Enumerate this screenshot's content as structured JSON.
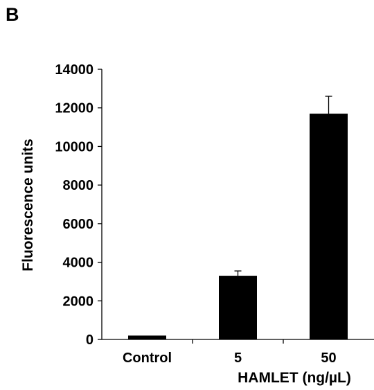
{
  "panel_label": "B",
  "chart_data": {
    "type": "bar",
    "categories": [
      "Control",
      "5",
      "50"
    ],
    "values": [
      200,
      3300,
      11700
    ],
    "error": [
      0,
      250,
      900
    ],
    "xlabel": "HAMLET (ng/µL)",
    "ylabel": "Fluorescence units",
    "ylim": [
      0,
      14000
    ],
    "yticks": [
      0,
      2000,
      4000,
      6000,
      8000,
      10000,
      12000,
      14000
    ],
    "grid": false,
    "legend": "none",
    "bar_color": "#000000"
  }
}
